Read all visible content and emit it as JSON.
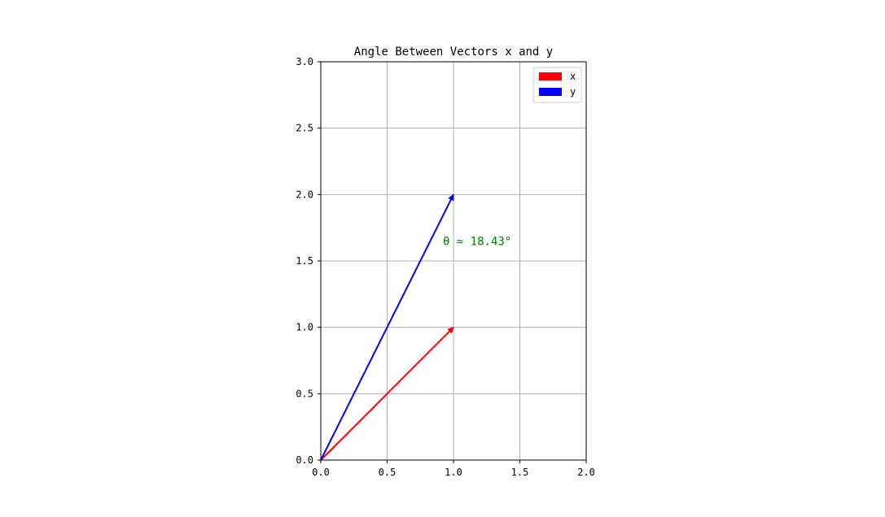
{
  "chart_data": {
    "type": "vector",
    "title": "Angle Between Vectors x and y",
    "xlabel": "",
    "ylabel": "",
    "xlim": [
      0,
      2
    ],
    "ylim": [
      0,
      3
    ],
    "x_ticks": [
      "0.0",
      "0.5",
      "1.0",
      "1.5",
      "2.0"
    ],
    "y_ticks": [
      "0.0",
      "0.5",
      "1.0",
      "1.5",
      "2.0",
      "2.5",
      "3.0"
    ],
    "x_tick_values": [
      0,
      0.5,
      1,
      1.5,
      2
    ],
    "y_tick_values": [
      0,
      0.5,
      1,
      1.5,
      2,
      2.5,
      3
    ],
    "grid": true,
    "legend_position": "top-right",
    "vectors": [
      {
        "name": "x",
        "origin": [
          0,
          0
        ],
        "components": [
          1,
          1
        ],
        "color": "#ff0000"
      },
      {
        "name": "y",
        "origin": [
          0,
          0
        ],
        "components": [
          1,
          2
        ],
        "color": "#0000ff"
      }
    ],
    "annotation": {
      "text": "θ ≈ 18.43°",
      "at": [
        0.92,
        1.62
      ],
      "color": "#008000"
    }
  }
}
